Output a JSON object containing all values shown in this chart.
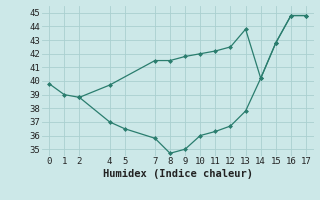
{
  "line1_x": [
    0,
    1,
    2,
    4,
    7,
    8,
    9,
    10,
    11,
    12,
    13,
    14,
    15,
    16,
    17
  ],
  "line1_y": [
    39.8,
    39.0,
    38.8,
    39.7,
    41.5,
    41.5,
    41.8,
    42.0,
    42.2,
    42.5,
    43.8,
    40.2,
    42.8,
    44.8,
    44.8
  ],
  "line2_x": [
    2,
    4,
    5,
    7,
    8,
    9,
    10,
    11,
    12,
    13,
    14,
    15,
    16,
    17
  ],
  "line2_y": [
    38.8,
    37.0,
    36.5,
    35.8,
    34.7,
    35.0,
    36.0,
    36.3,
    36.7,
    37.8,
    40.2,
    42.8,
    44.8,
    44.8
  ],
  "line_color": "#2a7d6e",
  "bg_color": "#cce8e8",
  "grid_color": "#aad0d0",
  "xlabel": "Humidex (Indice chaleur)",
  "xlim": [
    -0.5,
    17.5
  ],
  "ylim": [
    34.5,
    45.5
  ],
  "xticks": [
    0,
    1,
    2,
    4,
    5,
    7,
    8,
    9,
    10,
    11,
    12,
    13,
    14,
    15,
    16,
    17
  ],
  "yticks": [
    35,
    36,
    37,
    38,
    39,
    40,
    41,
    42,
    43,
    44,
    45
  ],
  "tick_fontsize": 6.5,
  "label_fontsize": 7.5
}
